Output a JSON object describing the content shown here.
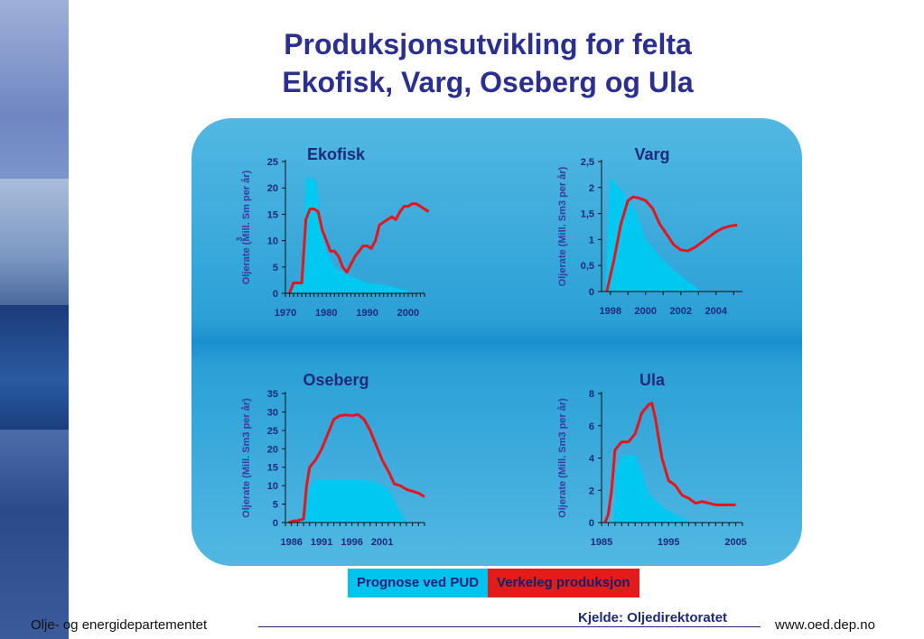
{
  "title": {
    "line1": "Produksjonsutvikling for felta",
    "line2": "Ekofisk, Varg, Oseberg og Ula"
  },
  "chart_data": [
    {
      "type": "area",
      "title": "Ekofisk",
      "ylabel": "Oljerate (Mill. Sm   per år)",
      "ylabel_superscript": "3",
      "xlim": [
        1970,
        2004
      ],
      "ylim": [
        0,
        25
      ],
      "xticks": [
        "1970",
        "1980",
        "1990",
        "2000"
      ],
      "xtick_values": [
        1970,
        1980,
        1990,
        2000
      ],
      "yticks": [
        "0",
        "5",
        "10",
        "15",
        "20",
        "25"
      ],
      "ytick_values": [
        0,
        5,
        10,
        15,
        20,
        25
      ],
      "series": [
        {
          "name": "Prognose ved PUD",
          "kind": "area",
          "color": "#00c8f0",
          "x": [
            1971,
            1972,
            1974,
            1975,
            1976,
            1977.5,
            1978.5,
            1980,
            1982,
            1985,
            1990,
            1995,
            2000
          ],
          "y": [
            0,
            1.5,
            3,
            22,
            22,
            21.5,
            15,
            8,
            5,
            3.5,
            2,
            1.5,
            0.5
          ]
        },
        {
          "name": "Verkeleg produksjon",
          "kind": "line",
          "color": "#e8141a",
          "x": [
            1971,
            1972,
            1974,
            1975,
            1976,
            1977,
            1978,
            1979,
            1980,
            1981,
            1982,
            1983,
            1984,
            1985,
            1986,
            1987,
            1988,
            1989,
            1990,
            1991,
            1992,
            1993,
            1994,
            1995,
            1996,
            1997,
            1998,
            1999,
            2000,
            2001,
            2002,
            2003,
            2004,
            2005
          ],
          "y": [
            0,
            2,
            2,
            14,
            16,
            16,
            15.5,
            12,
            10,
            8,
            8,
            7,
            5,
            4,
            5.5,
            7,
            8,
            9,
            9,
            8.5,
            10,
            13,
            13.5,
            14,
            14.5,
            14,
            15.5,
            16.5,
            16.5,
            17,
            17,
            16.5,
            16,
            15.5
          ]
        }
      ]
    },
    {
      "type": "area",
      "title": "Varg",
      "ylabel": "Oljerate (Mill. Sm3 per år)",
      "xlim": [
        1997.5,
        2005.5
      ],
      "ylim": [
        0,
        2.5
      ],
      "xticks": [
        "1998",
        "2000",
        "2002",
        "2004"
      ],
      "xtick_values": [
        1998,
        2000,
        2002,
        2004
      ],
      "yticks": [
        "0",
        "0,5",
        "1",
        "1,5",
        "2",
        "2,5"
      ],
      "ytick_values": [
        0,
        0.5,
        1,
        1.5,
        2,
        2.5
      ],
      "series": [
        {
          "name": "Prognose ved PUD",
          "kind": "area",
          "color": "#00c8f0",
          "x": [
            1997.7,
            1998,
            1998.5,
            1999,
            1999.5,
            2000,
            2001,
            2002,
            2003
          ],
          "y": [
            0,
            2.2,
            2.0,
            1.8,
            1.5,
            1.0,
            0.6,
            0.3,
            0.05
          ]
        },
        {
          "name": "Verkeleg produksjon",
          "kind": "line",
          "color": "#e8141a",
          "x": [
            1997.8,
            1998.2,
            1998.6,
            1999,
            1999.3,
            1999.6,
            2000,
            2000.4,
            2000.8,
            2001.2,
            2001.6,
            2002,
            2002.4,
            2002.8,
            2003.2,
            2003.6,
            2004,
            2004.4,
            2004.8,
            2005.2
          ],
          "y": [
            0,
            0.6,
            1.3,
            1.75,
            1.82,
            1.8,
            1.75,
            1.6,
            1.3,
            1.1,
            0.9,
            0.8,
            0.78,
            0.85,
            0.95,
            1.05,
            1.15,
            1.22,
            1.26,
            1.28
          ]
        }
      ]
    },
    {
      "type": "area",
      "title": "Oseberg",
      "ylabel": "Oljerate (Mill. Sm3 per år)",
      "xlim": [
        1985,
        2008
      ],
      "ylim": [
        0,
        35
      ],
      "xticks": [
        "1986",
        "1991",
        "1996",
        "2001"
      ],
      "xtick_values": [
        1986,
        1991,
        1996,
        2001
      ],
      "yticks": [
        "0",
        "5",
        "10",
        "15",
        "20",
        "25",
        "30",
        "35"
      ],
      "ytick_values": [
        0,
        5,
        10,
        15,
        20,
        25,
        30,
        35
      ],
      "series": [
        {
          "name": "Prognose ved PUD",
          "kind": "area",
          "color": "#00c8f0",
          "x": [
            1986.5,
            1987.8,
            1988.5,
            1990,
            1995,
            1998,
            2000,
            2002,
            2004,
            2005
          ],
          "y": [
            0,
            1,
            9,
            11.5,
            11.5,
            11.5,
            11,
            9,
            3,
            0
          ]
        },
        {
          "name": "Verkeleg produksjon",
          "kind": "line",
          "color": "#e8141a",
          "x": [
            1985.5,
            1986.5,
            1987,
            1988,
            1988.5,
            1989,
            1990,
            1991,
            1992,
            1993,
            1994,
            1995,
            1996,
            1997,
            1998,
            1999,
            2000,
            2001,
            2002,
            2003,
            2004,
            2005,
            2006,
            2007,
            2008
          ],
          "y": [
            0,
            0.5,
            0.5,
            1,
            10,
            15,
            17,
            20,
            24,
            28,
            29,
            29.2,
            29,
            29.3,
            28,
            25,
            21,
            17,
            14,
            10.5,
            10,
            9,
            8.5,
            8,
            7
          ]
        }
      ]
    },
    {
      "type": "area",
      "title": "Ula",
      "ylabel": "Oljerate (Mill. Sm3 per år)",
      "xlim": [
        1985,
        2006
      ],
      "ylim": [
        0,
        8
      ],
      "xticks": [
        "1985",
        "1995",
        "2005"
      ],
      "xtick_values": [
        1985,
        1995,
        2005
      ],
      "yticks": [
        "0",
        "2",
        "4",
        "6",
        "8"
      ],
      "ytick_values": [
        0,
        2,
        4,
        6,
        8
      ],
      "series": [
        {
          "name": "Prognose ved PUD",
          "kind": "area",
          "color": "#00c8f0",
          "x": [
            1986.8,
            1987.2,
            1988,
            1990,
            1991,
            1992,
            1994,
            1996,
            1998
          ],
          "y": [
            0,
            3.2,
            4.1,
            4.2,
            3.2,
            1.8,
            1.0,
            0.5,
            0.1
          ]
        },
        {
          "name": "Verkeleg produksjon",
          "kind": "line",
          "color": "#e8141a",
          "x": [
            1985.5,
            1986,
            1986.5,
            1987,
            1988,
            1989,
            1990,
            1991,
            1992,
            1992.5,
            1993,
            1994,
            1995,
            1996,
            1997,
            1998,
            1999,
            2000,
            2001,
            2002,
            2003,
            2004,
            2005
          ],
          "y": [
            0,
            0.5,
            2,
            4.5,
            5,
            5,
            5.5,
            6.8,
            7.3,
            7.4,
            6.5,
            4,
            2.6,
            2.3,
            1.7,
            1.5,
            1.2,
            1.3,
            1.2,
            1.1,
            1.1,
            1.1,
            1.1
          ]
        }
      ]
    }
  ],
  "legend": {
    "forecast": "Prognose ved PUD",
    "actual": "Verkeleg produksjon"
  },
  "colors": {
    "title": "#2b2f8f",
    "forecast": "#00c8f0",
    "actual": "#e8141a",
    "panel": "#2ba0d6"
  },
  "source": "Kjelde: Oljedirektoratet",
  "footer": {
    "left": "Olje- og energidepartementet",
    "right": "www.oed.dep.no"
  }
}
